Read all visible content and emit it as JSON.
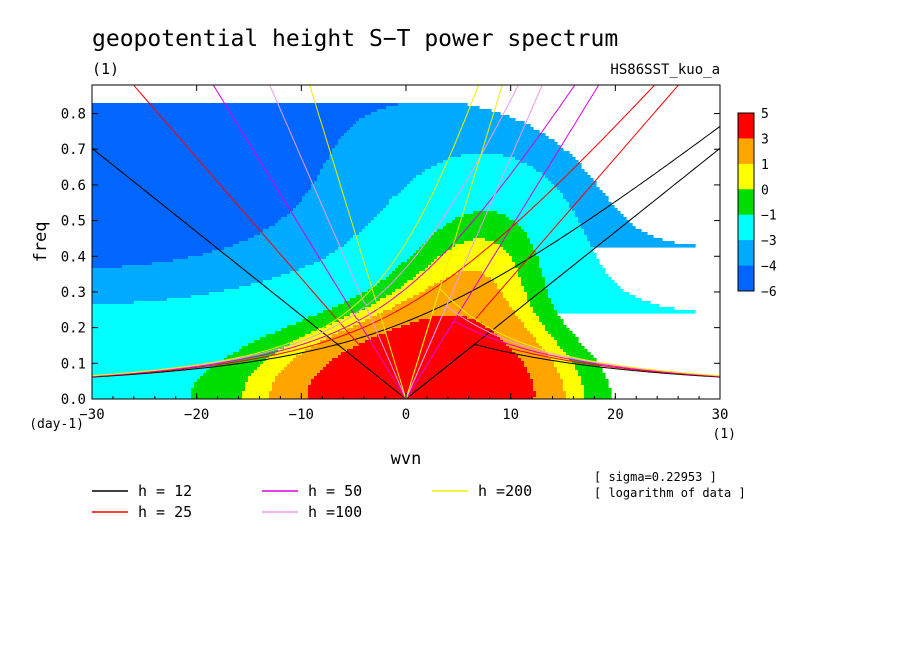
{
  "chart_data": {
    "type": "heatmap",
    "title": "geopotential height S−T power spectrum",
    "subtitle_left": "(1)",
    "subtitle_right": "HS86SST_kuo_a",
    "xlabel": "wvn",
    "ylabel": "freq",
    "x_unit": "(1)",
    "y_unit": "(day-1)",
    "xlim": [
      -30,
      30
    ],
    "ylim": [
      0,
      0.88
    ],
    "x_ticks": [
      -30,
      -20,
      -10,
      0,
      10,
      20,
      30
    ],
    "y_ticks": [
      0.0,
      0.1,
      0.2,
      0.3,
      0.4,
      0.5,
      0.6,
      0.7,
      0.8
    ],
    "x_tick_labels": [
      "−30",
      "−20",
      "−10",
      "0",
      "10",
      "20",
      "30"
    ],
    "y_tick_labels": [
      "0.0",
      "0.1",
      "0.2",
      "0.3",
      "0.4",
      "0.5",
      "0.6",
      "0.7",
      "0.8"
    ],
    "colorbar": {
      "labels": [
        "5",
        "3",
        "1",
        "0",
        "−1",
        "−3",
        "−4",
        "−6"
      ],
      "colors": [
        "#ff0000",
        "#ffa500",
        "#ffff00",
        "#00dd00",
        "#00ffff",
        "#00aaff",
        "#0066ff"
      ]
    },
    "contour_fill": {
      "levels": [
        -6,
        -4,
        -3,
        -1,
        0,
        1,
        3,
        5
      ],
      "colors": [
        "#0066ff",
        "#00aaff",
        "#00ffff",
        "#00dd00",
        "#ffff00",
        "#ffa500",
        "#ff0000"
      ]
    },
    "dispersion_curves": [
      {
        "label": "h = 12",
        "h": 12,
        "color": "#000000"
      },
      {
        "label": "h = 25",
        "h": 25,
        "color": "#ff0000"
      },
      {
        "label": "h = 50",
        "h": 50,
        "color": "#dd00dd"
      },
      {
        "label": "h =100",
        "h": 100,
        "color": "#ee99ee"
      },
      {
        "label": "h =200",
        "h": 200,
        "color": "#eeee00"
      }
    ],
    "annotations": [
      "[ sigma=0.22953 ]",
      "[ logarithm of data ]"
    ]
  }
}
